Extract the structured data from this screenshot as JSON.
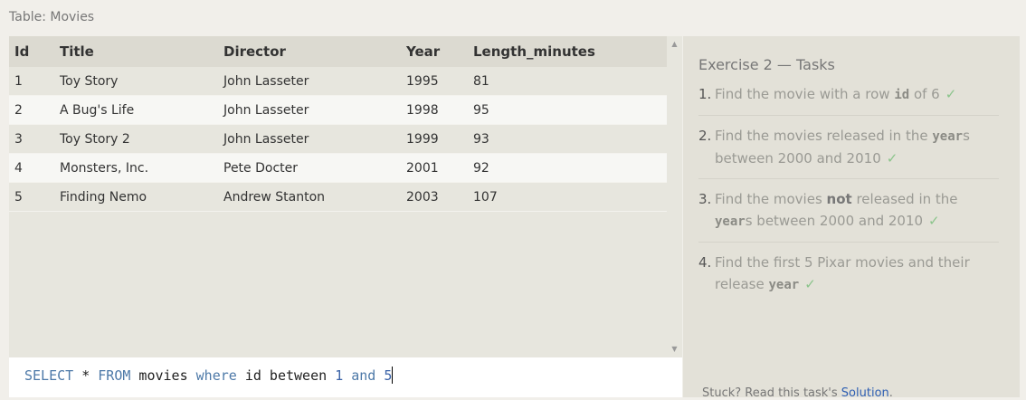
{
  "table_caption": "Table: Movies",
  "results": {
    "columns": [
      "Id",
      "Title",
      "Director",
      "Year",
      "Length_minutes"
    ],
    "rows": [
      [
        "1",
        "Toy Story",
        "John Lasseter",
        "1995",
        "81"
      ],
      [
        "2",
        "A Bug's Life",
        "John Lasseter",
        "1998",
        "95"
      ],
      [
        "3",
        "Toy Story 2",
        "John Lasseter",
        "1999",
        "93"
      ],
      [
        "4",
        "Monsters, Inc.",
        "Pete Docter",
        "2001",
        "92"
      ],
      [
        "5",
        "Finding Nemo",
        "Andrew Stanton",
        "2003",
        "107"
      ]
    ]
  },
  "scrollbar": {
    "up_icon": "▲",
    "down_icon": "▼"
  },
  "editor": {
    "tokens": [
      {
        "text": "SELECT",
        "type": "kw"
      },
      {
        "text": " * ",
        "type": "id"
      },
      {
        "text": "FROM",
        "type": "kw"
      },
      {
        "text": " movies ",
        "type": "id"
      },
      {
        "text": "where",
        "type": "kw"
      },
      {
        "text": " id between ",
        "type": "id"
      },
      {
        "text": "1",
        "type": "num"
      },
      {
        "text": " ",
        "type": "id"
      },
      {
        "text": "and",
        "type": "kw"
      },
      {
        "text": " ",
        "type": "id"
      },
      {
        "text": "5",
        "type": "num"
      }
    ]
  },
  "tasks": {
    "title": "Exercise 2 — Tasks",
    "items": [
      {
        "num": "1.",
        "parts": [
          {
            "t": "Find the movie with a row "
          },
          {
            "t": "id",
            "style": "code"
          },
          {
            "t": " of 6"
          }
        ],
        "check": "✓"
      },
      {
        "num": "2.",
        "parts": [
          {
            "t": "Find the movies released in the "
          },
          {
            "t": "year",
            "style": "code"
          },
          {
            "t": "s between 2000 and 2010"
          }
        ],
        "check": "✓"
      },
      {
        "num": "3.",
        "parts": [
          {
            "t": "Find the movies "
          },
          {
            "t": "not",
            "style": "strong"
          },
          {
            "t": " released in the "
          },
          {
            "t": "year",
            "style": "code"
          },
          {
            "t": "s between 2000 and 2010"
          }
        ],
        "check": "✓"
      },
      {
        "num": "4.",
        "parts": [
          {
            "t": "Find the first 5 Pixar movies and their release "
          },
          {
            "t": "year",
            "style": "code"
          }
        ],
        "check": "✓"
      }
    ]
  },
  "hint": {
    "prefix": "Stuck? Read this task's ",
    "link": "Solution",
    "suffix": "."
  }
}
